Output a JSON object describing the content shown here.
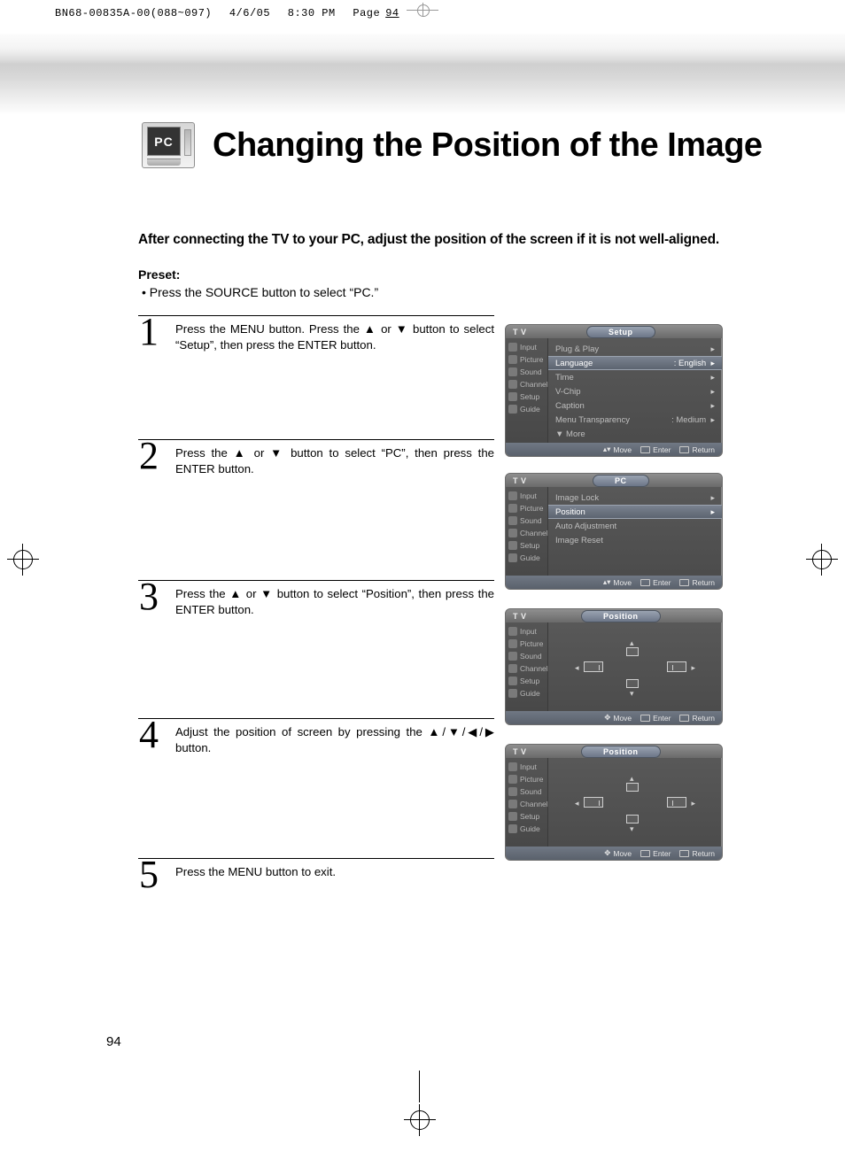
{
  "printHeader": {
    "file": "BN68-00835A-00(088~097)",
    "date": "4/6/05",
    "time": "8:30 PM",
    "pageWord": "Page",
    "pageNum": "94"
  },
  "pageNumber": "94",
  "title": "Changing the Position of the Image",
  "pcIconLabel": "PC",
  "intro": "After connecting the TV to your PC, adjust the position of the screen if it is not well-aligned.",
  "presetHeading": "Preset:",
  "presetItem": "Press the SOURCE button to select “PC.”",
  "steps": [
    {
      "n": "1",
      "text": "Press the MENU button. Press the ▲ or ▼ button to select “Setup”, then press the ENTER button."
    },
    {
      "n": "2",
      "text": "Press the ▲ or ▼ button to select “PC”, then press the ENTER button."
    },
    {
      "n": "3",
      "text": "Press the ▲ or ▼ button to select “Position”, then press the ENTER button."
    },
    {
      "n": "4",
      "text": "Adjust the position of screen by pressing the ▲/▼/◀/▶ button."
    },
    {
      "n": "5",
      "text": "Press the MENU button to exit."
    }
  ],
  "osdSidebar": [
    "Input",
    "Picture",
    "Sound",
    "Channel",
    "Setup",
    "Guide"
  ],
  "osdFooter": {
    "move": "Move",
    "enter": "Enter",
    "return": "Return"
  },
  "osdSetup": {
    "hdrLeft": "T V",
    "pill": "Setup",
    "rows": [
      {
        "label": "Plug & Play",
        "value": "",
        "hl": false
      },
      {
        "label": "Language",
        "value": ": English",
        "hl": true
      },
      {
        "label": "Time",
        "value": "",
        "hl": false
      },
      {
        "label": "V-Chip",
        "value": "",
        "hl": false
      },
      {
        "label": "Caption",
        "value": "",
        "hl": false
      },
      {
        "label": "Menu Transparency",
        "value": ": Medium",
        "hl": false
      },
      {
        "label": "▼ More",
        "value": "",
        "hl": false,
        "noarrow": true
      }
    ]
  },
  "osdPC": {
    "hdrLeft": "T V",
    "pill": "PC",
    "rows": [
      {
        "label": "Image Lock",
        "value": "",
        "hl": false
      },
      {
        "label": "Position",
        "value": "",
        "hl": true
      },
      {
        "label": "Auto Adjustment",
        "value": "",
        "hl": false,
        "noarrow": true
      },
      {
        "label": "Image Reset",
        "value": "",
        "hl": false,
        "noarrow": true
      }
    ]
  },
  "osdPosition": {
    "hdrLeft": "T V",
    "pill": "Position"
  },
  "colors": {
    "pageBg": "#ffffff",
    "text": "#000000",
    "osdBgTop": "#5a5a5a",
    "osdBgBottom": "#4a4a4a",
    "osdHdrTop": "#8f8f8f",
    "osdHdrBottom": "#6a6a6a",
    "osdPillTop": "#9aa3b1",
    "osdPillBottom": "#6c7688",
    "osdHighlightTop": "#7a828f",
    "osdHighlightBottom": "#5c6470",
    "osdFooterTop": "#707884",
    "osdFooterBottom": "#5a616c",
    "osdBorder": "#6d6d6d"
  },
  "typography": {
    "titleFontSize": 38,
    "titleWeight": "bold",
    "introFontSize": 15.5,
    "introWeight": "bold",
    "stepNumFontSize": 44,
    "stepNumFamily": "Georgia, Times New Roman, serif",
    "stepTextFontSize": 13.2,
    "osdFontSize": 10,
    "osdFooterFontSize": 8.5
  },
  "layout": {
    "pageWidth": 954,
    "pageHeight": 1301,
    "osdWidth": 246,
    "stepColWidth": 402
  }
}
